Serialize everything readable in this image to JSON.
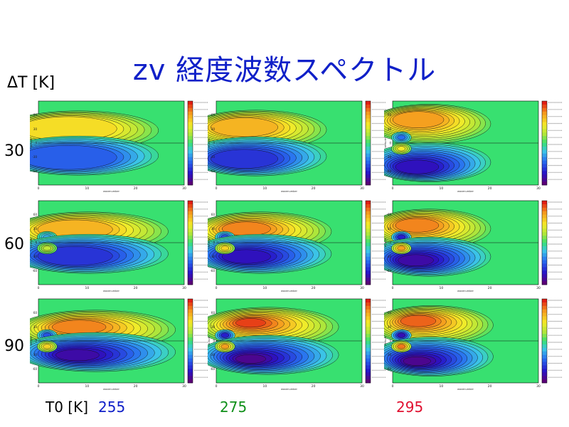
{
  "title": "zv 経度波数スペクトル",
  "delta_t_label": "ΔT [K]",
  "t0_label": "T0 [K]",
  "colors": {
    "title": "#1020c8",
    "t0_255": "#1020c8",
    "t0_275": "#10901a",
    "t0_295": "#e01030",
    "background": "#38e070"
  },
  "chart_data": {
    "type": "heatmap",
    "rows": [
      {
        "delta_t": "30",
        "value": 30
      },
      {
        "delta_t": "60",
        "value": 60
      },
      {
        "delta_t": "90",
        "value": 90
      }
    ],
    "columns": [
      {
        "t0": "255",
        "value": 255,
        "color": "#1020c8"
      },
      {
        "t0": "275",
        "value": 275,
        "color": "#10901a"
      },
      {
        "t0": "295",
        "value": 295,
        "color": "#e01030"
      }
    ],
    "x_axis": {
      "label": "wavenumber",
      "range": [
        0,
        30
      ],
      "ticks": [
        "0",
        "10",
        "20",
        "30"
      ]
    },
    "y_axis": {
      "label": "latitude",
      "range": [
        -90,
        90
      ],
      "ticks": [
        "-60",
        "-30",
        "0",
        "30",
        "60"
      ]
    },
    "colorbar": {
      "levels": 14
    },
    "panels": [
      {
        "row": 0,
        "col": 0,
        "pos_peak": 0.55,
        "neg_peak": 0.55,
        "peak_lon": 3.5,
        "peak_lat": 36,
        "spread": 8,
        "bubble": 0.0
      },
      {
        "row": 0,
        "col": 1,
        "pos_peak": 0.7,
        "neg_peak": 0.7,
        "peak_lon": 4.0,
        "peak_lat": 38,
        "spread": 7,
        "bubble": 0.0
      },
      {
        "row": 0,
        "col": 2,
        "pos_peak": 0.75,
        "neg_peak": 0.8,
        "peak_lon": 4.0,
        "peak_lat": 55,
        "spread": 6,
        "bubble": 0.5
      },
      {
        "row": 1,
        "col": 0,
        "pos_peak": 0.7,
        "neg_peak": 0.7,
        "peak_lon": 5.5,
        "peak_lat": 32,
        "spread": 8,
        "bubble": 0.3
      },
      {
        "row": 1,
        "col": 1,
        "pos_peak": 0.8,
        "neg_peak": 0.85,
        "peak_lon": 5.0,
        "peak_lat": 32,
        "spread": 7,
        "bubble": 0.6
      },
      {
        "row": 1,
        "col": 2,
        "pos_peak": 0.8,
        "neg_peak": 0.9,
        "peak_lon": 4.0,
        "peak_lat": 40,
        "spread": 6,
        "bubble": 0.8
      },
      {
        "row": 2,
        "col": 0,
        "pos_peak": 0.85,
        "neg_peak": 0.9,
        "peak_lon": 7.0,
        "peak_lat": 32,
        "spread": 8,
        "bubble": 0.6
      },
      {
        "row": 2,
        "col": 1,
        "pos_peak": 0.95,
        "neg_peak": 0.95,
        "peak_lon": 6.5,
        "peak_lat": 40,
        "spread": 7,
        "bubble": 0.8
      },
      {
        "row": 2,
        "col": 2,
        "pos_peak": 0.9,
        "neg_peak": 0.95,
        "peak_lon": 4.5,
        "peak_lat": 45,
        "spread": 6,
        "bubble": 0.9
      }
    ]
  }
}
